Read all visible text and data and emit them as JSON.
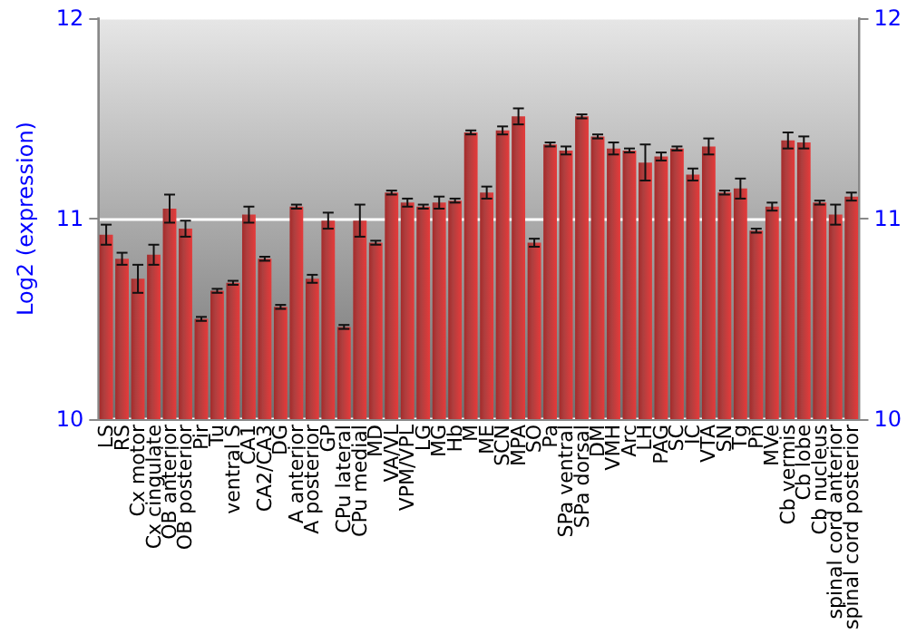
{
  "chart_data": {
    "type": "bar",
    "ylabel": "Log2 (expression)",
    "categories": [
      "LS",
      "RS",
      "Cx motor",
      "Cx cingulate",
      "OB anterior",
      "OB posterior",
      "Pir",
      "Tu",
      "ventral S",
      "CA1",
      "CA2/CA3",
      "DG",
      "A anterior",
      "A posterior",
      "GP",
      "CPu lateral",
      "CPu medial",
      "MD",
      "VA/VL",
      "VPM/VPL",
      "LG",
      "MG",
      "Hb",
      "M",
      "ME",
      "SCN",
      "MPA",
      "SO",
      "Pa",
      "SPa ventral",
      "SPa dorsal",
      "DM",
      "VMH",
      "Arc",
      "LH",
      "PAG",
      "SC",
      "IC",
      "VTA",
      "SN",
      "Tg",
      "Pn",
      "MVe",
      "Cb vermis",
      "Cb lobe",
      "Cb nucleus",
      "spinal cord anterior",
      "spinal cord posterior"
    ],
    "values": [
      10.92,
      10.8,
      10.7,
      10.82,
      11.05,
      10.95,
      10.5,
      10.64,
      10.68,
      11.02,
      10.8,
      10.56,
      11.06,
      10.7,
      10.99,
      10.46,
      10.99,
      10.88,
      11.13,
      11.08,
      11.06,
      11.08,
      11.09,
      11.43,
      11.13,
      11.44,
      11.51,
      10.88,
      11.37,
      11.34,
      11.51,
      11.41,
      11.35,
      11.34,
      11.28,
      11.31,
      11.35,
      11.22,
      11.36,
      11.13,
      11.15,
      10.94,
      11.06,
      11.39,
      11.38,
      11.08,
      11.02,
      11.11
    ],
    "errors": [
      0.05,
      0.03,
      0.07,
      0.05,
      0.07,
      0.04,
      0.01,
      0.01,
      0.01,
      0.04,
      0.01,
      0.01,
      0.01,
      0.02,
      0.04,
      0.01,
      0.08,
      0.01,
      0.01,
      0.02,
      0.01,
      0.03,
      0.01,
      0.01,
      0.03,
      0.02,
      0.04,
      0.02,
      0.01,
      0.02,
      0.01,
      0.01,
      0.03,
      0.01,
      0.09,
      0.02,
      0.01,
      0.03,
      0.04,
      0.01,
      0.05,
      0.01,
      0.02,
      0.04,
      0.03,
      0.01,
      0.05,
      0.02
    ],
    "color": "#a52a2a",
    "ylim": [
      10,
      12
    ],
    "yticks": [
      10,
      11,
      12
    ],
    "y2lim": [
      10,
      12
    ],
    "y2ticks": [
      10,
      11,
      12
    ],
    "grid": "y"
  }
}
